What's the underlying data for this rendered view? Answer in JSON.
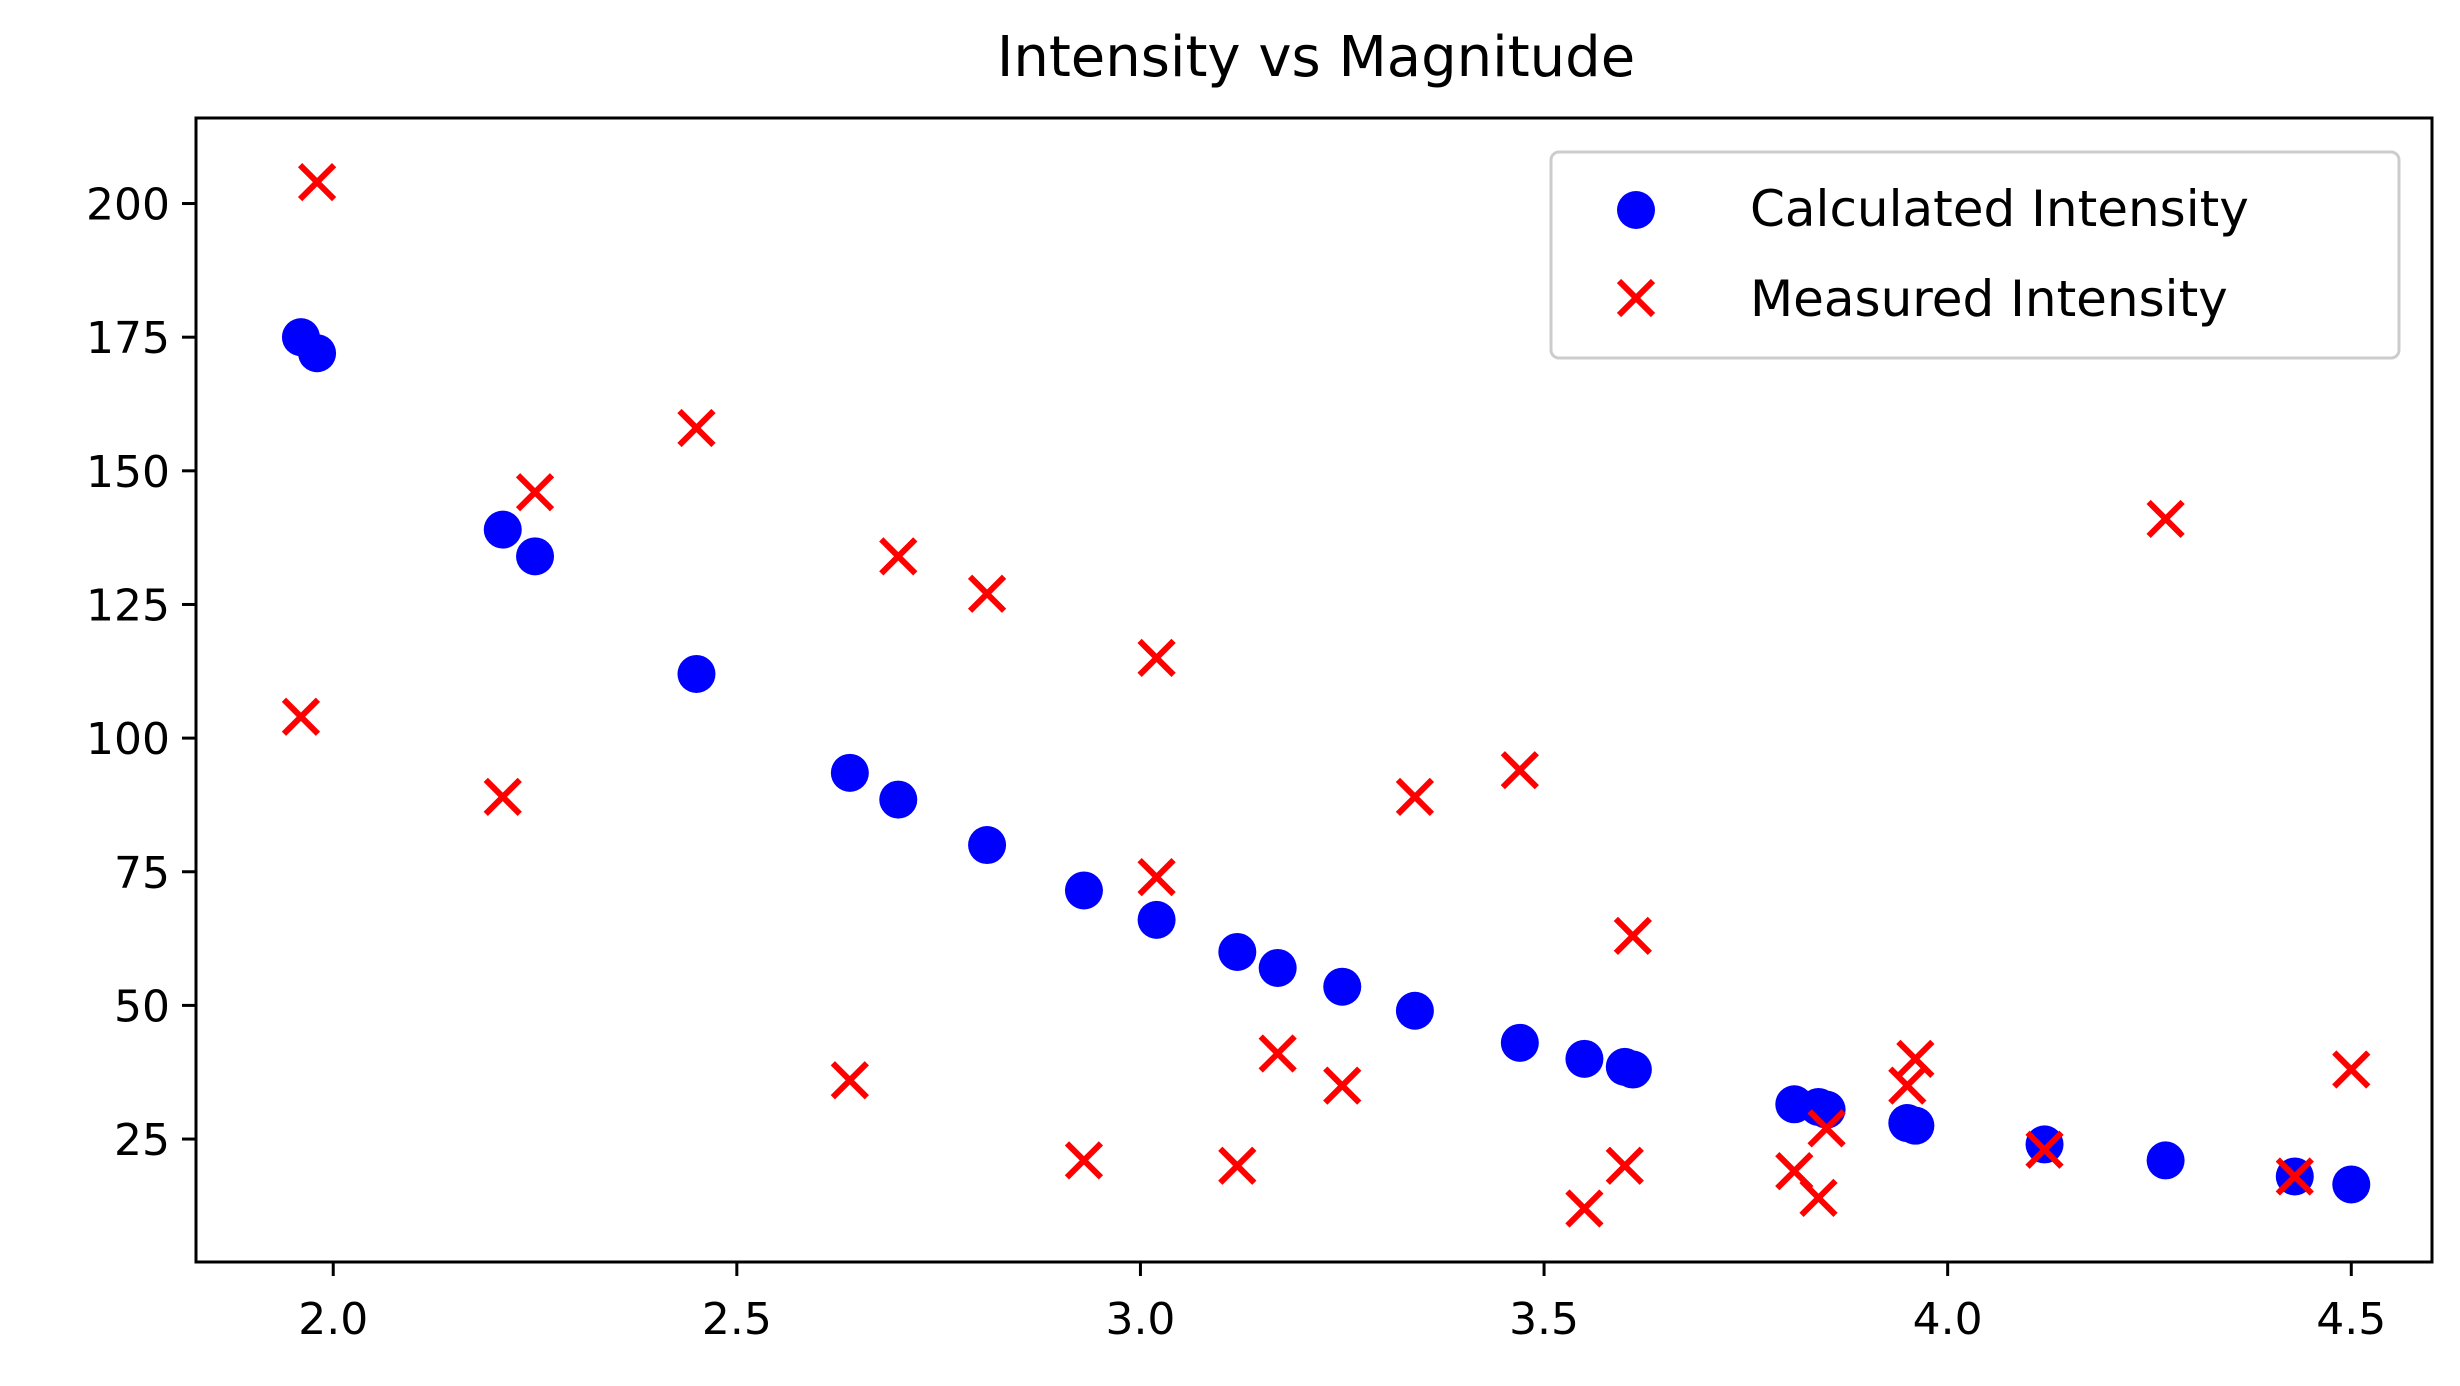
{
  "chart_data": {
    "type": "scatter",
    "title": "Intensity vs Magnitude",
    "xlabel": "",
    "ylabel": "",
    "xlim": [
      1.83,
      4.6
    ],
    "ylim": [
      2,
      216
    ],
    "xticks": [
      2.0,
      2.5,
      3.0,
      3.5,
      4.0,
      4.5
    ],
    "xtick_labels": [
      "2.0",
      "2.5",
      "3.0",
      "3.5",
      "4.0",
      "4.5"
    ],
    "yticks": [
      25,
      50,
      75,
      100,
      125,
      150,
      175,
      200
    ],
    "ytick_labels": [
      "25",
      "50",
      "75",
      "100",
      "125",
      "150",
      "175",
      "200"
    ],
    "grid": false,
    "legend_position": "top-right",
    "series": [
      {
        "name": "Calculated Intensity",
        "marker": "circle",
        "color": "#0000ff",
        "points": [
          [
            1.96,
            175
          ],
          [
            1.98,
            172
          ],
          [
            2.21,
            139
          ],
          [
            2.25,
            134
          ],
          [
            2.45,
            112
          ],
          [
            2.64,
            93.5
          ],
          [
            2.7,
            88.5
          ],
          [
            2.81,
            80
          ],
          [
            2.93,
            71.5
          ],
          [
            3.02,
            66
          ],
          [
            3.12,
            60
          ],
          [
            3.17,
            57
          ],
          [
            3.25,
            53.5
          ],
          [
            3.34,
            49
          ],
          [
            3.47,
            43
          ],
          [
            3.55,
            40
          ],
          [
            3.6,
            38.5
          ],
          [
            3.61,
            38
          ],
          [
            3.81,
            31.5
          ],
          [
            3.84,
            31
          ],
          [
            3.85,
            30.5
          ],
          [
            3.95,
            28
          ],
          [
            3.96,
            27.5
          ],
          [
            4.12,
            24
          ],
          [
            4.27,
            21
          ],
          [
            4.43,
            18
          ],
          [
            4.5,
            16.5
          ]
        ]
      },
      {
        "name": "Measured Intensity",
        "marker": "x",
        "color": "#ff0000",
        "points": [
          [
            1.96,
            104
          ],
          [
            1.98,
            204
          ],
          [
            2.21,
            89
          ],
          [
            2.25,
            146
          ],
          [
            2.45,
            158
          ],
          [
            2.64,
            36
          ],
          [
            2.7,
            134
          ],
          [
            2.81,
            127
          ],
          [
            2.93,
            21
          ],
          [
            3.02,
            115
          ],
          [
            3.02,
            74
          ],
          [
            3.12,
            20
          ],
          [
            3.17,
            41
          ],
          [
            3.25,
            35
          ],
          [
            3.34,
            89
          ],
          [
            3.47,
            94
          ],
          [
            3.55,
            12
          ],
          [
            3.6,
            20
          ],
          [
            3.61,
            63
          ],
          [
            3.81,
            19
          ],
          [
            3.84,
            14
          ],
          [
            3.85,
            27
          ],
          [
            3.95,
            35
          ],
          [
            3.96,
            40
          ],
          [
            4.12,
            23
          ],
          [
            4.27,
            141
          ],
          [
            4.43,
            18
          ],
          [
            4.5,
            38
          ]
        ]
      }
    ]
  }
}
